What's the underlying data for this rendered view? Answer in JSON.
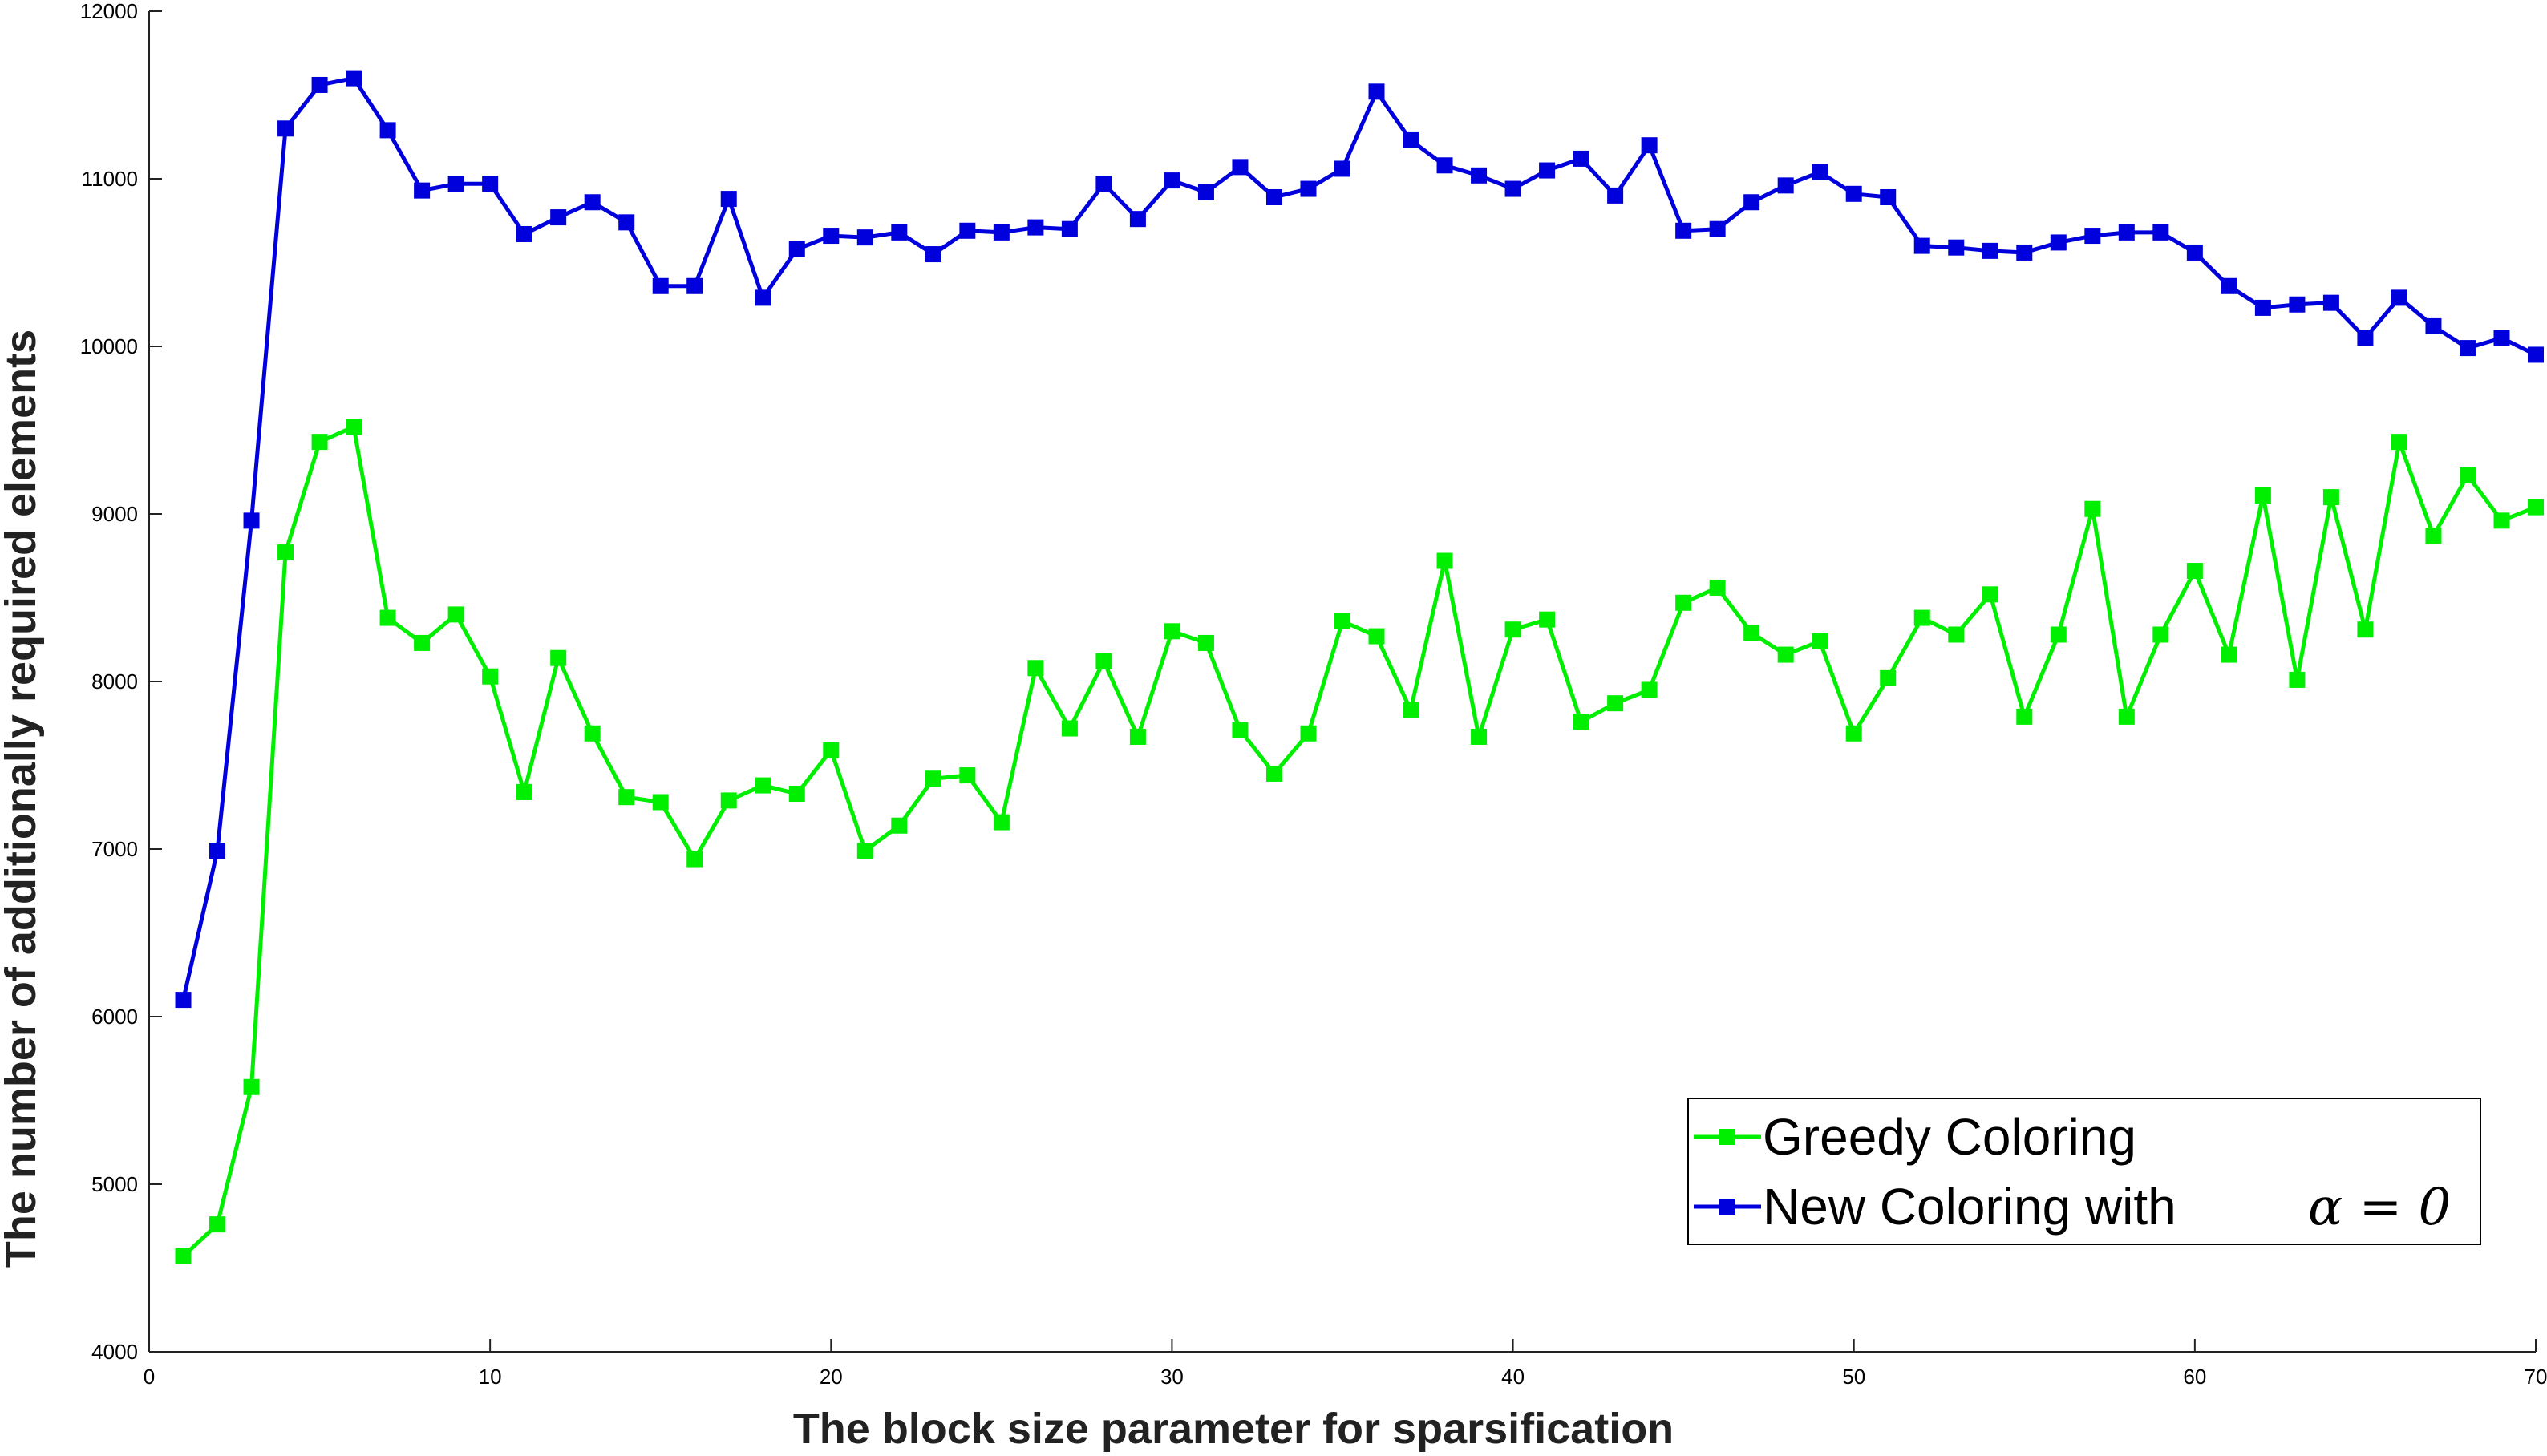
{
  "chart_data": {
    "type": "line",
    "xlabel": "The block size parameter for sparsification",
    "ylabel": "The number of additionally required elements",
    "xlim": [
      0,
      70
    ],
    "ylim": [
      4000,
      12000
    ],
    "xticks": [
      0,
      10,
      20,
      30,
      40,
      50,
      60,
      70
    ],
    "yticks": [
      4000,
      5000,
      6000,
      7000,
      8000,
      9000,
      10000,
      11000,
      12000
    ],
    "grid": false,
    "legend_position": "bottom-right",
    "x": [
      1,
      2,
      3,
      4,
      5,
      6,
      7,
      8,
      9,
      10,
      11,
      12,
      13,
      14,
      15,
      16,
      17,
      18,
      19,
      20,
      21,
      22,
      23,
      24,
      25,
      26,
      27,
      28,
      29,
      30,
      31,
      32,
      33,
      34,
      35,
      36,
      37,
      38,
      39,
      40,
      41,
      42,
      43,
      44,
      45,
      46,
      47,
      48,
      49,
      50,
      51,
      52,
      53,
      54,
      55,
      56,
      57,
      58,
      59,
      60,
      61,
      62,
      63,
      64,
      65,
      66,
      67,
      68,
      69,
      70
    ],
    "series": [
      {
        "name": "Greedy Coloring",
        "color": "#00ee00",
        "values": [
          4570,
          4760,
          5580,
          8770,
          9430,
          9520,
          8380,
          8230,
          8400,
          8030,
          7340,
          8140,
          7690,
          7310,
          7280,
          6940,
          7290,
          7380,
          7330,
          7590,
          6990,
          7140,
          7420,
          7440,
          7160,
          8080,
          7720,
          8120,
          7670,
          8300,
          8230,
          7710,
          7450,
          7690,
          8360,
          8270,
          7830,
          8720,
          7670,
          8310,
          8370,
          7760,
          7870,
          7950,
          8470,
          8560,
          8290,
          8160,
          8240,
          7690,
          8020,
          8380,
          8280,
          8520,
          7790,
          8280,
          9030,
          7790,
          8280,
          8660,
          8160,
          9110,
          8010,
          9100,
          8310,
          9430,
          8870,
          9230,
          8960,
          9040
        ]
      },
      {
        "name": "New Coloring with α = 0",
        "color": "#0000dd",
        "values": [
          6100,
          6990,
          8960,
          11300,
          11560,
          11600,
          11290,
          10930,
          10970,
          10970,
          10670,
          10770,
          10860,
          10740,
          10360,
          10360,
          10880,
          10290,
          10580,
          10660,
          10650,
          10680,
          10550,
          10690,
          10680,
          10710,
          10700,
          10970,
          10760,
          10990,
          10920,
          11070,
          10890,
          10940,
          11060,
          11520,
          11230,
          11080,
          11020,
          10940,
          11050,
          11120,
          10900,
          11200,
          10690,
          10700,
          10860,
          10960,
          11040,
          10910,
          10890,
          10600,
          10590,
          10570,
          10560,
          10620,
          10660,
          10680,
          10680,
          10560,
          10360,
          10230,
          10250,
          10260,
          10050,
          10290,
          10120,
          9990,
          10050,
          9950
        ]
      }
    ],
    "legend": {
      "greedy_label": "Greedy Coloring",
      "new_label": "New Coloring with",
      "new_alpha": "α = 0"
    }
  }
}
